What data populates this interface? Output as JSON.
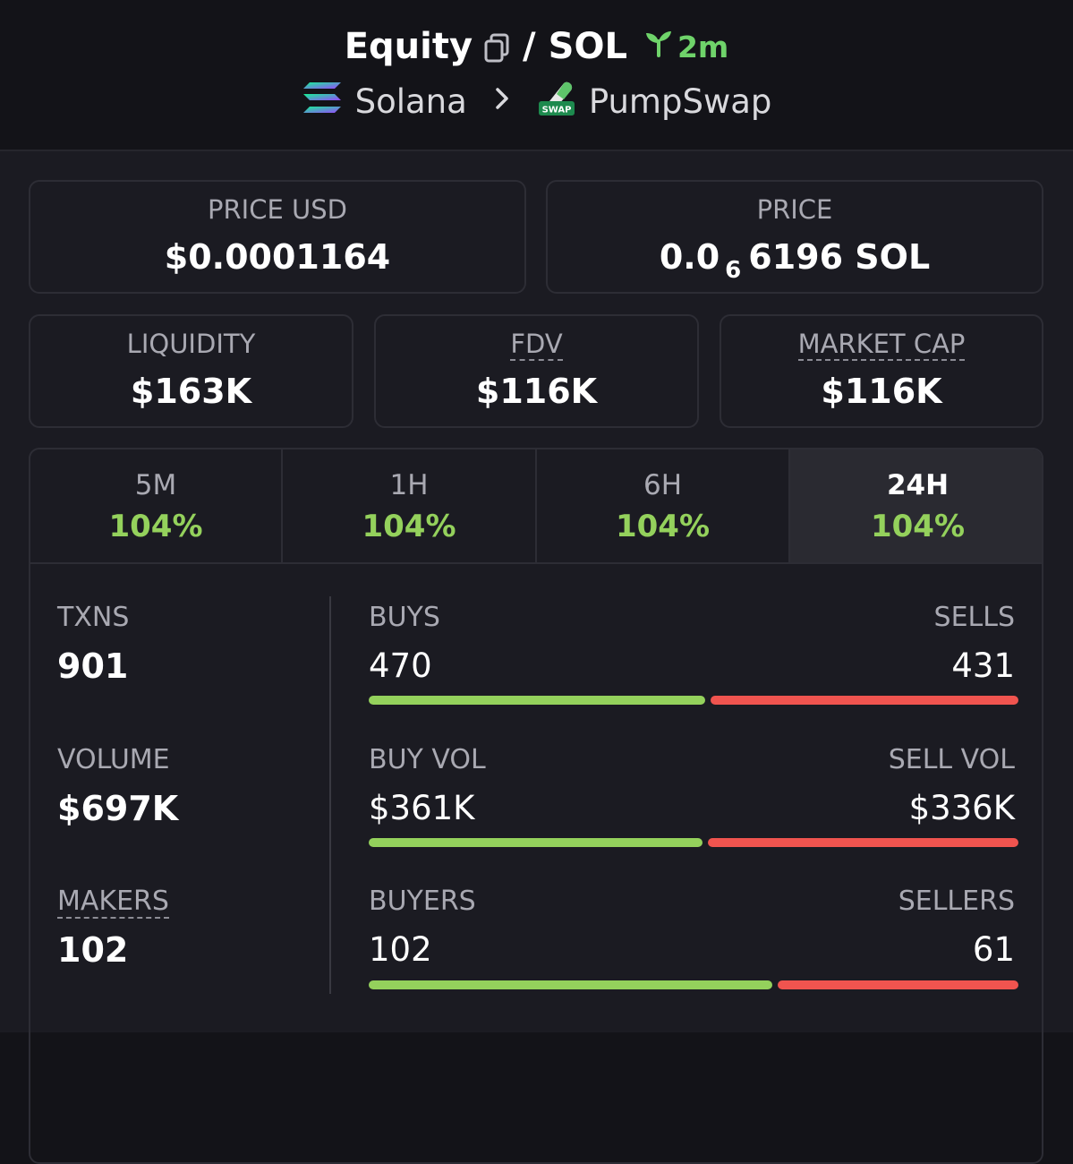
{
  "header": {
    "token": "Equity",
    "separator": "/",
    "quote": "SOL",
    "age": "2m",
    "chain": "Solana",
    "dex": "PumpSwap",
    "dex_badge": "SWAP",
    "icons": [
      "copy-icon",
      "sprout-icon",
      "solana-logo-icon",
      "chevron-right-icon",
      "pumpswap-logo-icon"
    ]
  },
  "price_usd": {
    "label": "PRICE USD",
    "value": "$0.0001164"
  },
  "price": {
    "label": "PRICE",
    "prefix": "0.0",
    "zeros": "6",
    "digits": "6196",
    "unit": "SOL"
  },
  "liquidity": {
    "label": "LIQUIDITY",
    "value": "$163K"
  },
  "fdv": {
    "label": "FDV",
    "value": "$116K"
  },
  "market_cap": {
    "label": "MARKET CAP",
    "value": "$116K"
  },
  "tabs": [
    {
      "label": "5M",
      "value": "104%"
    },
    {
      "label": "1H",
      "value": "104%"
    },
    {
      "label": "6H",
      "value": "104%"
    },
    {
      "label": "24H",
      "value": "104%",
      "active": true
    }
  ],
  "stats": {
    "txns": {
      "label": "TXNS",
      "value": "901"
    },
    "volume": {
      "label": "VOLUME",
      "value": "$697K"
    },
    "makers": {
      "label": "MAKERS",
      "value": "102"
    }
  },
  "pairs": {
    "buys": {
      "label": "BUYS",
      "value": "470",
      "share": 0.5216
    },
    "sells": {
      "label": "SELLS",
      "value": "431"
    },
    "buy_vol": {
      "label": "BUY VOL",
      "value": "$361K",
      "share": 0.518
    },
    "sell_vol": {
      "label": "SELL VOL",
      "value": "$336K"
    },
    "buyers": {
      "label": "BUYERS",
      "value": "102",
      "share": 0.626
    },
    "sellers": {
      "label": "SELLERS",
      "value": "61"
    }
  },
  "colors": {
    "positive": "#94d15c",
    "negative": "#f0544f",
    "accent_age": "#6fd36a"
  }
}
